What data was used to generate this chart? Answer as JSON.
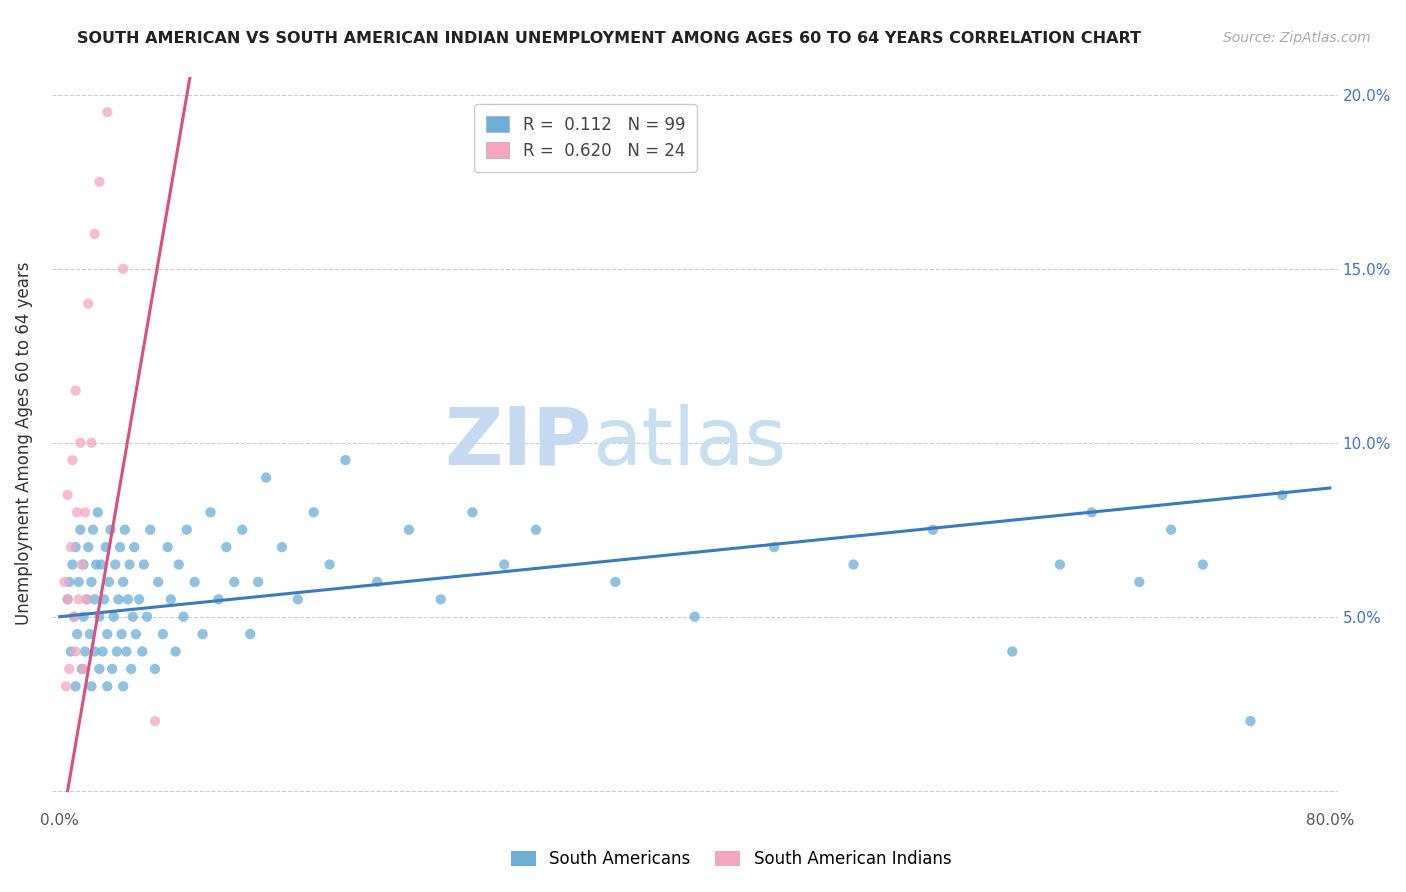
{
  "title": "SOUTH AMERICAN VS SOUTH AMERICAN INDIAN UNEMPLOYMENT AMONG AGES 60 TO 64 YEARS CORRELATION CHART",
  "source": "Source: ZipAtlas.com",
  "ylabel": "Unemployment Among Ages 60 to 64 years",
  "xlim": [
    -0.005,
    0.805
  ],
  "ylim": [
    -0.005,
    0.205
  ],
  "xticks": [
    0.0,
    0.1,
    0.2,
    0.3,
    0.4,
    0.5,
    0.6,
    0.7,
    0.8
  ],
  "xticklabels": [
    "0.0%",
    "",
    "",
    "",
    "",
    "",
    "",
    "",
    "80.0%"
  ],
  "yticks": [
    0.0,
    0.05,
    0.1,
    0.15,
    0.2
  ],
  "blue_R": "0.112",
  "blue_N": "99",
  "pink_R": "0.620",
  "pink_N": "24",
  "blue_color": "#6baed6",
  "pink_color": "#f4a6c0",
  "blue_line_color": "#3a7abf",
  "pink_line_color": "#d94f7e",
  "watermark_zip": "ZIP",
  "watermark_atlas": "atlas",
  "legend_entries": [
    "South Americans",
    "South American Indians"
  ],
  "blue_line_x": [
    0.0,
    0.8
  ],
  "blue_line_y": [
    0.05,
    0.087
  ],
  "pink_line_x": [
    0.005,
    0.082
  ],
  "pink_line_y": [
    0.0,
    0.205
  ],
  "blue_scatter_x": [
    0.005,
    0.006,
    0.007,
    0.008,
    0.009,
    0.01,
    0.01,
    0.011,
    0.012,
    0.013,
    0.014,
    0.015,
    0.015,
    0.016,
    0.017,
    0.018,
    0.019,
    0.02,
    0.02,
    0.021,
    0.022,
    0.022,
    0.023,
    0.024,
    0.025,
    0.025,
    0.026,
    0.027,
    0.028,
    0.029,
    0.03,
    0.03,
    0.031,
    0.032,
    0.033,
    0.034,
    0.035,
    0.036,
    0.037,
    0.038,
    0.039,
    0.04,
    0.04,
    0.041,
    0.042,
    0.043,
    0.044,
    0.045,
    0.046,
    0.047,
    0.048,
    0.05,
    0.052,
    0.053,
    0.055,
    0.057,
    0.06,
    0.062,
    0.065,
    0.068,
    0.07,
    0.073,
    0.075,
    0.078,
    0.08,
    0.085,
    0.09,
    0.095,
    0.1,
    0.105,
    0.11,
    0.115,
    0.12,
    0.125,
    0.13,
    0.14,
    0.15,
    0.16,
    0.17,
    0.18,
    0.2,
    0.22,
    0.24,
    0.26,
    0.28,
    0.3,
    0.35,
    0.4,
    0.45,
    0.5,
    0.55,
    0.6,
    0.63,
    0.65,
    0.68,
    0.7,
    0.72,
    0.75,
    0.77
  ],
  "blue_scatter_y": [
    0.055,
    0.06,
    0.04,
    0.065,
    0.05,
    0.03,
    0.07,
    0.045,
    0.06,
    0.075,
    0.035,
    0.05,
    0.065,
    0.04,
    0.055,
    0.07,
    0.045,
    0.03,
    0.06,
    0.075,
    0.04,
    0.055,
    0.065,
    0.08,
    0.035,
    0.05,
    0.065,
    0.04,
    0.055,
    0.07,
    0.03,
    0.045,
    0.06,
    0.075,
    0.035,
    0.05,
    0.065,
    0.04,
    0.055,
    0.07,
    0.045,
    0.03,
    0.06,
    0.075,
    0.04,
    0.055,
    0.065,
    0.035,
    0.05,
    0.07,
    0.045,
    0.055,
    0.04,
    0.065,
    0.05,
    0.075,
    0.035,
    0.06,
    0.045,
    0.07,
    0.055,
    0.04,
    0.065,
    0.05,
    0.075,
    0.06,
    0.045,
    0.08,
    0.055,
    0.07,
    0.06,
    0.075,
    0.045,
    0.06,
    0.09,
    0.07,
    0.055,
    0.08,
    0.065,
    0.095,
    0.06,
    0.075,
    0.055,
    0.08,
    0.065,
    0.075,
    0.06,
    0.05,
    0.07,
    0.065,
    0.075,
    0.04,
    0.065,
    0.08,
    0.06,
    0.075,
    0.065,
    0.02,
    0.085
  ],
  "pink_scatter_x": [
    0.003,
    0.004,
    0.005,
    0.005,
    0.006,
    0.007,
    0.008,
    0.009,
    0.01,
    0.01,
    0.011,
    0.012,
    0.013,
    0.014,
    0.015,
    0.016,
    0.017,
    0.018,
    0.02,
    0.022,
    0.025,
    0.03,
    0.04,
    0.06
  ],
  "pink_scatter_y": [
    0.06,
    0.03,
    0.055,
    0.085,
    0.035,
    0.07,
    0.095,
    0.05,
    0.04,
    0.115,
    0.08,
    0.055,
    0.1,
    0.065,
    0.035,
    0.08,
    0.055,
    0.14,
    0.1,
    0.16,
    0.175,
    0.195,
    0.15,
    0.02
  ]
}
